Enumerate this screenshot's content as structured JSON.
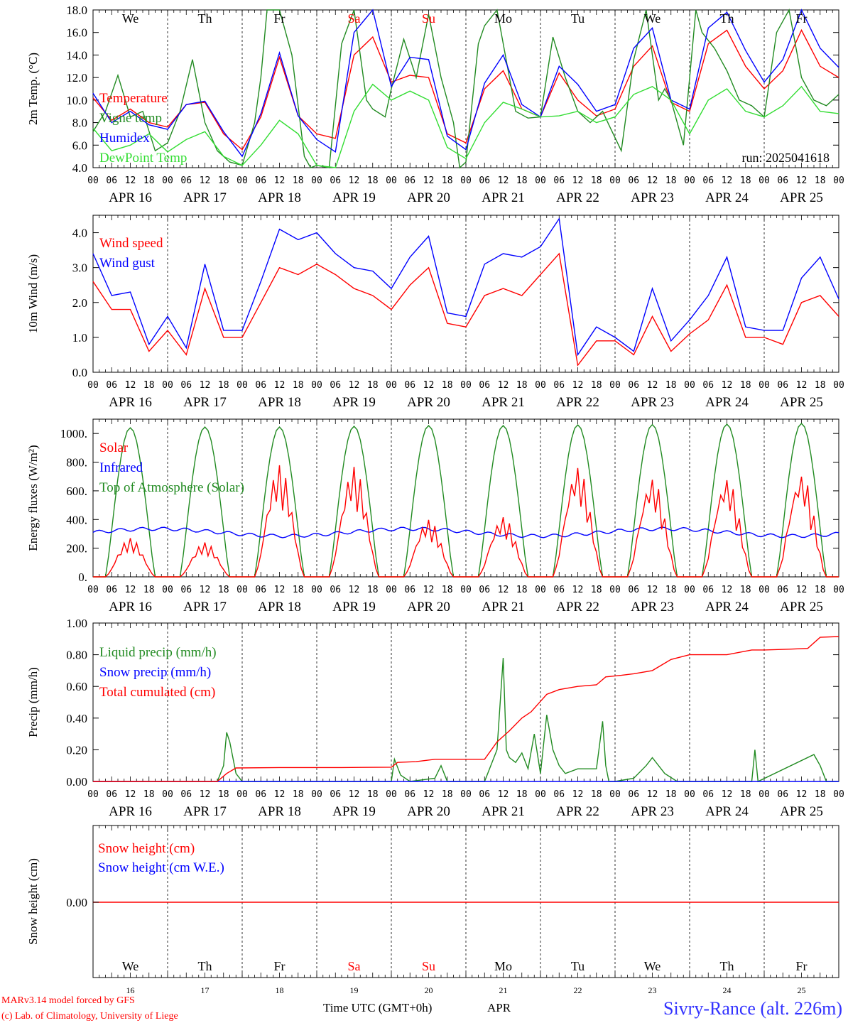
{
  "footer": {
    "model": "MARv3.14 model forced by GFS",
    "lab": "(c) Lab. of Climatology, University of Liege",
    "xlabel": "Time UTC (GMT+0h)",
    "month": "APR",
    "station": "Sivry-Rance (alt. 226m)"
  },
  "days": [
    "16",
    "17",
    "18",
    "19",
    "20",
    "21",
    "22",
    "23",
    "24",
    "25"
  ],
  "date_labels": [
    "APR 16",
    "APR 17",
    "APR 18",
    "APR 19",
    "APR 20",
    "APR 21",
    "APR 22",
    "APR 23",
    "APR 24",
    "APR 25"
  ],
  "weekdays": [
    "We",
    "Th",
    "Fr",
    "Sa",
    "Su",
    "Mo",
    "Tu",
    "We",
    "Th",
    "Fr"
  ],
  "weekend_color": "#ff0000",
  "hour_ticks": [
    "00",
    "06",
    "12",
    "18"
  ],
  "colors": {
    "red": "#ff0000",
    "darkgreen": "#228b22",
    "blue": "#0000ff",
    "lightgreen": "#33dd33",
    "station": "#3333ff"
  },
  "chart_data": [
    {
      "id": "temp",
      "type": "line",
      "ylabel": "2m Temp. (°C)",
      "ylim": [
        4,
        18
      ],
      "yticks": [
        "4.0",
        "6.0",
        "8.0",
        "10.0",
        "12.0",
        "14.0",
        "16.0",
        "18.0"
      ],
      "annotation": "run: 2025041618",
      "x_unit": "hours since APR 16 00 UTC",
      "series": [
        {
          "name": "Temperature",
          "color": "red",
          "x": [
            0,
            6,
            12,
            18,
            24,
            30,
            36,
            42,
            48,
            54,
            60,
            66,
            72,
            78,
            84,
            90,
            96,
            102,
            108,
            114,
            120,
            126,
            132,
            138,
            144,
            150,
            156,
            162,
            168,
            174,
            180,
            186,
            192,
            198,
            204,
            210,
            216,
            222,
            228,
            234,
            240
          ],
          "values": [
            10.2,
            8.2,
            9.2,
            8.0,
            7.6,
            9.6,
            9.8,
            7.0,
            5.6,
            8.5,
            13.8,
            8.6,
            7.0,
            6.6,
            14.0,
            15.6,
            11.6,
            12.2,
            12.0,
            7.0,
            6.2,
            11.0,
            12.6,
            9.2,
            8.5,
            12.4,
            10.0,
            8.6,
            9.2,
            13.0,
            14.8,
            9.8,
            9.0,
            15.0,
            16.2,
            13.0,
            11.0,
            12.6,
            16.2,
            13.0,
            12.0
          ]
        },
        {
          "name": "Vigne temp",
          "color": "darkgreen",
          "x": [
            0,
            4,
            8,
            12,
            16,
            20,
            24,
            28,
            32,
            36,
            40,
            44,
            48,
            52,
            54,
            56,
            60,
            64,
            68,
            70,
            72,
            76,
            80,
            84,
            88,
            90,
            94,
            96,
            100,
            104,
            108,
            112,
            116,
            118,
            120,
            124,
            126,
            130,
            134,
            136,
            140,
            144,
            148,
            152,
            156,
            160,
            164,
            166,
            170,
            174,
            178,
            182,
            184,
            186,
            190,
            194,
            196,
            200,
            204,
            208,
            212,
            216,
            220,
            224,
            228,
            232,
            236,
            240
          ],
          "values": [
            7.2,
            9.0,
            12.2,
            8.5,
            9.0,
            5.5,
            6.2,
            9.0,
            13.6,
            8.0,
            5.5,
            4.5,
            4.2,
            8.0,
            12.0,
            18.0,
            18.0,
            14.0,
            5.0,
            4.0,
            4.2,
            4.0,
            15.0,
            18.0,
            10.0,
            9.2,
            8.5,
            11.0,
            15.4,
            12.0,
            17.6,
            12.0,
            8.0,
            4.0,
            4.5,
            15.0,
            16.6,
            18.0,
            12.0,
            9.0,
            8.4,
            8.5,
            15.6,
            12.0,
            9.0,
            8.0,
            9.0,
            7.8,
            5.5,
            13.6,
            18.0,
            10.0,
            11.0,
            10.0,
            6.0,
            18.0,
            16.0,
            14.6,
            12.6,
            10.0,
            9.5,
            8.5,
            16.0,
            18.0,
            12.0,
            10.0,
            9.5,
            10.5
          ]
        },
        {
          "name": "Humidex",
          "color": "blue",
          "x": [
            0,
            6,
            12,
            18,
            24,
            30,
            36,
            42,
            48,
            54,
            60,
            66,
            72,
            78,
            84,
            90,
            96,
            102,
            108,
            114,
            120,
            126,
            132,
            138,
            144,
            150,
            156,
            162,
            168,
            174,
            180,
            186,
            192,
            198,
            204,
            210,
            216,
            222,
            228,
            234,
            240
          ],
          "values": [
            10.6,
            8.0,
            9.0,
            7.8,
            7.4,
            9.6,
            9.9,
            7.2,
            5.0,
            8.8,
            14.2,
            8.6,
            6.5,
            5.4,
            16.0,
            18.0,
            11.2,
            13.8,
            13.6,
            6.8,
            5.6,
            11.5,
            14.0,
            9.6,
            8.5,
            13.0,
            11.4,
            9.0,
            9.6,
            14.6,
            16.4,
            10.0,
            9.2,
            16.4,
            17.8,
            14.4,
            11.6,
            13.6,
            18.0,
            14.6,
            12.9
          ]
        },
        {
          "name": "DewPoint Temp",
          "color": "lightgreen",
          "x": [
            0,
            6,
            12,
            18,
            24,
            30,
            36,
            42,
            48,
            54,
            60,
            66,
            72,
            78,
            84,
            90,
            96,
            102,
            108,
            114,
            120,
            126,
            132,
            138,
            144,
            150,
            156,
            162,
            168,
            174,
            180,
            186,
            192,
            198,
            204,
            210,
            216,
            222,
            228,
            234,
            240
          ],
          "values": [
            7.5,
            5.5,
            6.0,
            7.0,
            5.4,
            6.5,
            7.2,
            5.0,
            4.2,
            6.0,
            8.2,
            7.0,
            4.2,
            4.0,
            9.0,
            11.4,
            10.0,
            10.8,
            10.0,
            5.8,
            4.8,
            8.0,
            9.8,
            9.2,
            8.5,
            8.6,
            9.0,
            8.0,
            8.5,
            10.5,
            11.2,
            10.0,
            7.0,
            10.0,
            11.0,
            9.0,
            8.5,
            9.5,
            11.2,
            9.0,
            8.8
          ]
        }
      ]
    },
    {
      "id": "wind",
      "type": "line",
      "ylabel": "10m Wind (m/s)",
      "ylim": [
        0,
        4.5
      ],
      "yticks": [
        "0.0",
        "1.0",
        "2.0",
        "3.0",
        "4.0"
      ],
      "x_unit": "hours since APR 16 00 UTC",
      "series": [
        {
          "name": "Wind speed",
          "color": "red",
          "x": [
            0,
            6,
            12,
            18,
            24,
            30,
            36,
            42,
            48,
            54,
            60,
            66,
            72,
            78,
            84,
            90,
            96,
            102,
            108,
            114,
            120,
            126,
            132,
            138,
            144,
            150,
            156,
            162,
            168,
            174,
            180,
            186,
            192,
            198,
            204,
            210,
            216,
            222,
            228,
            234,
            240
          ],
          "values": [
            2.6,
            1.8,
            1.8,
            0.6,
            1.2,
            0.5,
            2.4,
            1.0,
            1.0,
            2.0,
            3.0,
            2.8,
            3.1,
            2.8,
            2.4,
            2.2,
            1.8,
            2.5,
            3.0,
            1.4,
            1.3,
            2.2,
            2.4,
            2.2,
            2.8,
            3.4,
            0.2,
            0.9,
            0.9,
            0.5,
            1.6,
            0.6,
            1.1,
            1.5,
            2.5,
            1.0,
            1.0,
            0.8,
            2.0,
            2.2,
            1.6
          ]
        },
        {
          "name": "Wind gust",
          "color": "blue",
          "x": [
            0,
            6,
            12,
            18,
            24,
            30,
            36,
            42,
            48,
            54,
            60,
            66,
            72,
            78,
            84,
            90,
            96,
            102,
            108,
            114,
            120,
            126,
            132,
            138,
            144,
            150,
            156,
            162,
            168,
            174,
            180,
            186,
            192,
            198,
            204,
            210,
            216,
            222,
            228,
            234,
            240
          ],
          "values": [
            3.4,
            2.2,
            2.3,
            0.8,
            1.6,
            0.7,
            3.1,
            1.2,
            1.2,
            2.6,
            4.1,
            3.8,
            4.0,
            3.4,
            3.0,
            2.9,
            2.4,
            3.3,
            3.9,
            1.7,
            1.6,
            3.1,
            3.4,
            3.3,
            3.6,
            4.4,
            0.5,
            1.3,
            1.0,
            0.6,
            2.4,
            0.9,
            1.5,
            2.2,
            3.3,
            1.3,
            1.2,
            1.2,
            2.7,
            3.3,
            2.1
          ]
        }
      ]
    },
    {
      "id": "energy",
      "type": "line",
      "ylabel": "Energy fluxes (W/m²)",
      "ylim": [
        0,
        1100
      ],
      "yticks": [
        "0.",
        "200.",
        "400.",
        "600.",
        "800.",
        "1000."
      ],
      "x_unit": "hours since APR 16 00 UTC",
      "daily_top_of_atmosphere_peak": [
        1040,
        1045,
        1045,
        1050,
        1055,
        1055,
        1060,
        1062,
        1065,
        1070
      ],
      "daily_solar_peak": [
        270,
        240,
        780,
        770,
        400,
        420,
        770,
        690,
        690,
        720
      ],
      "infrared_level": 310,
      "series": [
        {
          "name": "Solar",
          "color": "red"
        },
        {
          "name": "Infrared",
          "color": "blue"
        },
        {
          "name": "Top of Atmosphere (Solar)",
          "color": "darkgreen"
        }
      ]
    },
    {
      "id": "precip",
      "type": "line",
      "ylabel": "Precip (mm/h)",
      "ylim": [
        0,
        1.0
      ],
      "yticks": [
        "0.00",
        "0.20",
        "0.40",
        "0.60",
        "0.80",
        "1.00"
      ],
      "x_unit": "hours since APR 16 00 UTC",
      "series": [
        {
          "name": "Liquid precip (mm/h)",
          "color": "darkgreen",
          "x": [
            0,
            40,
            42,
            43,
            44,
            46,
            48,
            96,
            97,
            99,
            102,
            110,
            112,
            114,
            118,
            126,
            130,
            132,
            133,
            134,
            136,
            138,
            140,
            142,
            144,
            146,
            148,
            150,
            152,
            156,
            162,
            164,
            165,
            166,
            168,
            174,
            178,
            180,
            184,
            188,
            212,
            213,
            214,
            232,
            234,
            236,
            240
          ],
          "values": [
            0,
            0,
            0.1,
            0.31,
            0.25,
            0.05,
            0,
            0,
            0.14,
            0.04,
            0,
            0.02,
            0.1,
            0,
            0,
            0,
            0.2,
            0.78,
            0.2,
            0.15,
            0.12,
            0.18,
            0.08,
            0.3,
            0.05,
            0.42,
            0.2,
            0.1,
            0.05,
            0.08,
            0.08,
            0.38,
            0.1,
            0,
            0,
            0.02,
            0.1,
            0.15,
            0.05,
            0,
            0,
            0.2,
            0,
            0.17,
            0.1,
            0,
            0
          ]
        },
        {
          "name": "Snow precip (mm/h)",
          "color": "blue",
          "x": [
            0,
            240
          ],
          "values": [
            0,
            0
          ]
        },
        {
          "name": "Total cumulated (cm)",
          "color": "red",
          "x": [
            0,
            40,
            43,
            46,
            60,
            80,
            96,
            98,
            104,
            110,
            126,
            130,
            134,
            138,
            141,
            146,
            150,
            156,
            162,
            165,
            170,
            174,
            180,
            186,
            192,
            204,
            212,
            216,
            224,
            230,
            234,
            240
          ],
          "values": [
            0,
            0,
            0.05,
            0.085,
            0.088,
            0.088,
            0.09,
            0.12,
            0.125,
            0.14,
            0.14,
            0.25,
            0.32,
            0.4,
            0.44,
            0.55,
            0.58,
            0.6,
            0.61,
            0.66,
            0.67,
            0.68,
            0.7,
            0.77,
            0.8,
            0.8,
            0.83,
            0.83,
            0.835,
            0.84,
            0.91,
            0.915
          ]
        }
      ]
    },
    {
      "id": "snow",
      "type": "line",
      "ylabel": "Snow height (cm)",
      "yticks": [
        "0.00"
      ],
      "x_unit": "hours since APR 16 00 UTC",
      "series": [
        {
          "name": "Snow height (cm)",
          "color": "red",
          "x": [
            0,
            240
          ],
          "values": [
            0,
            0
          ]
        },
        {
          "name": "Snow height (cm W.E.)",
          "color": "blue",
          "x": [
            0,
            240
          ],
          "values": [
            0,
            0
          ]
        }
      ]
    }
  ]
}
